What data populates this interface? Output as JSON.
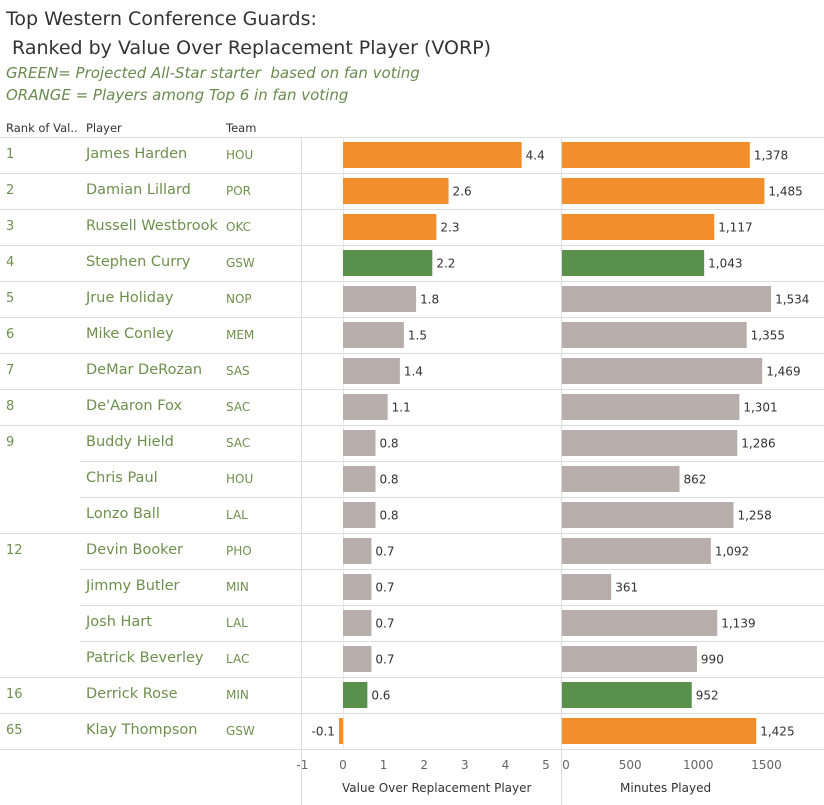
{
  "title_line1": "Top Western Conference Guards:",
  "title_line2": " Ranked by Value Over Replacement Player (VORP)",
  "legend_green": "GREEN= Projected All-Star starter  based on fan voting",
  "legend_orange": "ORANGE = Players among Top 6 in fan voting",
  "headers": {
    "rank": "Rank of Val..",
    "player": "Player",
    "team": "Team"
  },
  "colors": {
    "orange": "#f28e2b",
    "green": "#59904c",
    "gray": "#b7adab"
  },
  "chart_data": {
    "type": "bar",
    "orientation": "horizontal",
    "rows": [
      {
        "rank": "1",
        "player": "James Harden",
        "team": "HOU",
        "vorp": 4.4,
        "vorp_label": "4.4",
        "minutes": 1378,
        "minutes_label": "1,378",
        "color": "orange"
      },
      {
        "rank": "2",
        "player": "Damian Lillard",
        "team": "POR",
        "vorp": 2.6,
        "vorp_label": "2.6",
        "minutes": 1485,
        "minutes_label": "1,485",
        "color": "orange"
      },
      {
        "rank": "3",
        "player": "Russell Westbrook",
        "team": "OKC",
        "vorp": 2.3,
        "vorp_label": "2.3",
        "minutes": 1117,
        "minutes_label": "1,117",
        "color": "orange"
      },
      {
        "rank": "4",
        "player": "Stephen Curry",
        "team": "GSW",
        "vorp": 2.2,
        "vorp_label": "2.2",
        "minutes": 1043,
        "minutes_label": "1,043",
        "color": "green"
      },
      {
        "rank": "5",
        "player": "Jrue Holiday",
        "team": "NOP",
        "vorp": 1.8,
        "vorp_label": "1.8",
        "minutes": 1534,
        "minutes_label": "1,534",
        "color": "gray"
      },
      {
        "rank": "6",
        "player": "Mike Conley",
        "team": "MEM",
        "vorp": 1.5,
        "vorp_label": "1.5",
        "minutes": 1355,
        "minutes_label": "1,355",
        "color": "gray"
      },
      {
        "rank": "7",
        "player": "DeMar DeRozan",
        "team": "SAS",
        "vorp": 1.4,
        "vorp_label": "1.4",
        "minutes": 1469,
        "minutes_label": "1,469",
        "color": "gray"
      },
      {
        "rank": "8",
        "player": "De'Aaron Fox",
        "team": "SAC",
        "vorp": 1.1,
        "vorp_label": "1.1",
        "minutes": 1301,
        "minutes_label": "1,301",
        "color": "gray"
      },
      {
        "rank": "9",
        "player": "Buddy Hield",
        "team": "SAC",
        "vorp": 0.8,
        "vorp_label": "0.8",
        "minutes": 1286,
        "minutes_label": "1,286",
        "color": "gray"
      },
      {
        "rank": "",
        "player": "Chris Paul",
        "team": "HOU",
        "vorp": 0.8,
        "vorp_label": "0.8",
        "minutes": 862,
        "minutes_label": "862",
        "color": "gray"
      },
      {
        "rank": "",
        "player": "Lonzo Ball",
        "team": "LAL",
        "vorp": 0.8,
        "vorp_label": "0.8",
        "minutes": 1258,
        "minutes_label": "1,258",
        "color": "gray"
      },
      {
        "rank": "12",
        "player": "Devin Booker",
        "team": "PHO",
        "vorp": 0.7,
        "vorp_label": "0.7",
        "minutes": 1092,
        "minutes_label": "1,092",
        "color": "gray"
      },
      {
        "rank": "",
        "player": "Jimmy Butler",
        "team": "MIN",
        "vorp": 0.7,
        "vorp_label": "0.7",
        "minutes": 361,
        "minutes_label": "361",
        "color": "gray"
      },
      {
        "rank": "",
        "player": "Josh Hart",
        "team": "LAL",
        "vorp": 0.7,
        "vorp_label": "0.7",
        "minutes": 1139,
        "minutes_label": "1,139",
        "color": "gray"
      },
      {
        "rank": "",
        "player": "Patrick Beverley",
        "team": "LAC",
        "vorp": 0.7,
        "vorp_label": "0.7",
        "minutes": 990,
        "minutes_label": "990",
        "color": "gray"
      },
      {
        "rank": "16",
        "player": "Derrick Rose",
        "team": "MIN",
        "vorp": 0.6,
        "vorp_label": "0.6",
        "minutes": 952,
        "minutes_label": "952",
        "color": "green"
      },
      {
        "rank": "65",
        "player": "Klay Thompson",
        "team": "GSW",
        "vorp": -0.1,
        "vorp_label": "-0.1",
        "minutes": 1425,
        "minutes_label": "1,425",
        "color": "orange"
      }
    ],
    "vorp_axis": {
      "title": "Value Over Replacement Player",
      "range": [
        -1,
        5
      ],
      "ticks": [
        "-1",
        "0",
        "1",
        "2",
        "3",
        "4",
        "5"
      ]
    },
    "minutes_axis": {
      "title": "Minutes Played",
      "range": [
        0,
        1550
      ],
      "ticks": [
        "0",
        "500",
        "1000",
        "1500"
      ]
    }
  }
}
